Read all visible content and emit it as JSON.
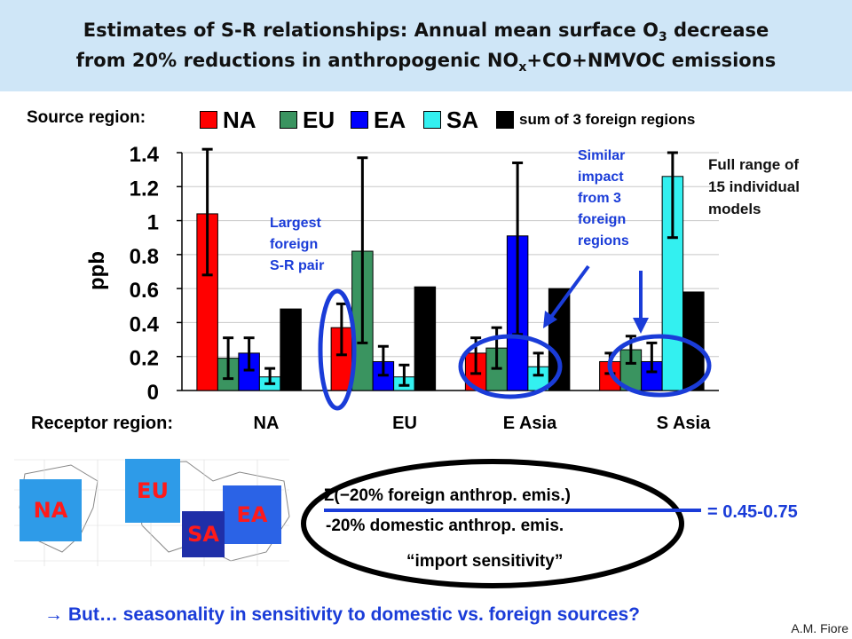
{
  "title": {
    "line1_pre": "Estimates of S-R relationships: Annual mean surface O",
    "line1_sub": "3",
    "line1_post": " decrease",
    "line2_pre": "from 20% reductions in anthropogenic NO",
    "line2_sub": "x",
    "line2_post": "+CO+NMVOC emissions"
  },
  "legend": {
    "label": "Source region:",
    "items": [
      {
        "name": "NA",
        "color": "#ff0000"
      },
      {
        "name": "EU",
        "color": "#3a9460"
      },
      {
        "name": "EA",
        "color": "#0000ff"
      },
      {
        "name": "SA",
        "color": "#33f0f0"
      },
      {
        "name": "sum of 3 foreign regions",
        "color": "#000000"
      }
    ]
  },
  "chart_data": {
    "type": "bar",
    "categories": [
      "NA",
      "EU",
      "E Asia",
      "S Asia"
    ],
    "category_axis_label": "Receptor region:",
    "ylabel": "ppb",
    "ylim": [
      0,
      1.4
    ],
    "yticks": [
      "0",
      "0.2",
      "0.4",
      "0.6",
      "0.8",
      "1",
      "1.2",
      "1.4"
    ],
    "grid": true,
    "series": [
      {
        "name": "NA",
        "color": "#ff0000",
        "values": [
          1.04,
          0.37,
          0.22,
          0.17
        ],
        "range_low": [
          0.68,
          0.21,
          0.1,
          0.1
        ],
        "range_high": [
          1.42,
          0.51,
          0.31,
          0.22
        ]
      },
      {
        "name": "EU",
        "color": "#3a9460",
        "values": [
          0.19,
          0.82,
          0.25,
          0.24
        ],
        "range_low": [
          0.07,
          0.28,
          0.13,
          0.16
        ],
        "range_high": [
          0.31,
          1.37,
          0.37,
          0.32
        ]
      },
      {
        "name": "EA",
        "color": "#0000ff",
        "values": [
          0.22,
          0.17,
          0.91,
          0.17
        ],
        "range_low": [
          0.12,
          0.09,
          0.33,
          0.11
        ],
        "range_high": [
          0.31,
          0.26,
          1.34,
          0.28
        ]
      },
      {
        "name": "SA",
        "color": "#33f0f0",
        "values": [
          0.08,
          0.08,
          0.14,
          1.26
        ],
        "range_low": [
          0.04,
          0.03,
          0.09,
          0.9
        ],
        "range_high": [
          0.13,
          0.15,
          0.22,
          1.4
        ]
      },
      {
        "name": "sum of 3 foreign regions",
        "color": "#000000",
        "values": [
          0.48,
          0.61,
          0.6,
          0.58
        ]
      }
    ],
    "annotations": {
      "largest_pair": "Largest\nforeign\nS-R pair",
      "similar_impact": "Similar\nimpact\nfrom 3\nforeign\nregions",
      "full_range": "Full range of\n15 individual\nmodels"
    }
  },
  "map": {
    "regions": [
      {
        "name": "NA",
        "color": "#2e9be8"
      },
      {
        "name": "EU",
        "color": "#2e9be8"
      },
      {
        "name": "EA",
        "color": "#2b63e6"
      },
      {
        "name": "SA",
        "color": "#1f2fa8"
      }
    ],
    "label_color": "#ff1a1a"
  },
  "formula": {
    "numerator": "Σ(−20% foreign anthrop. emis.)",
    "denominator": "-20% domestic anthrop. emis.",
    "result": "= 0.45-0.75",
    "caption": "“import sensitivity”"
  },
  "footer": {
    "question": "→ But… seasonality in sensitivity to domestic vs. foreign sources?",
    "author": "A.M. Fiore"
  }
}
